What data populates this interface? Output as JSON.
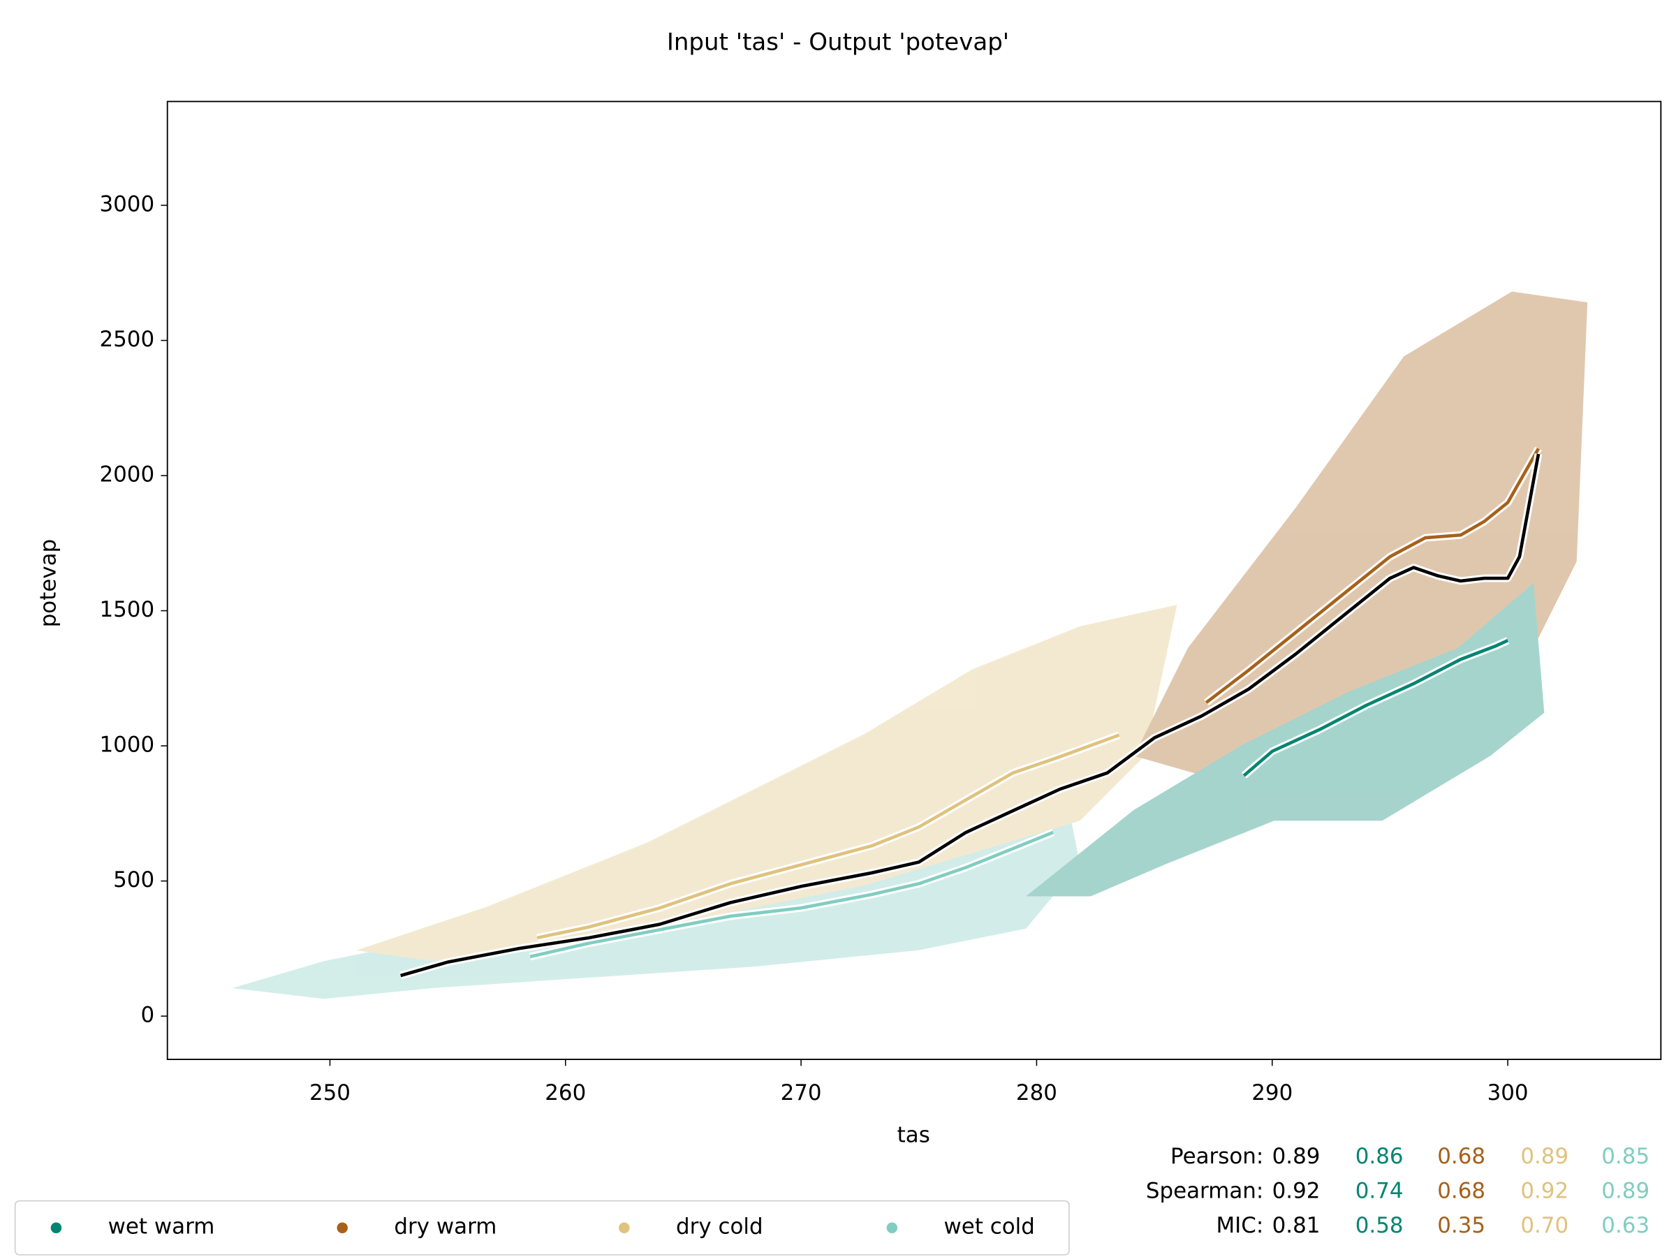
{
  "chart_data": {
    "type": "line",
    "title": "Input 'tas' - Output 'potevap'",
    "x_label": "tas",
    "y_label": "potevap",
    "xlim": [
      243.1,
      306.5
    ],
    "ylim": [
      -160,
      3384
    ],
    "xticks": [
      250,
      260,
      270,
      280,
      290,
      300
    ],
    "yticks": [
      0,
      500,
      1000,
      1500,
      2000,
      2500,
      3000
    ],
    "overall": {
      "color": "#000000",
      "x": [
        253,
        255,
        258,
        261,
        264,
        267,
        270,
        273,
        275,
        277,
        279,
        281,
        283,
        285,
        287,
        289,
        291,
        293,
        295,
        296,
        297,
        298,
        299,
        300,
        300.5,
        301.3
      ],
      "values": [
        150,
        200,
        250,
        290,
        340,
        420,
        480,
        530,
        570,
        680,
        760,
        840,
        900,
        1030,
        1110,
        1210,
        1340,
        1480,
        1620,
        1660,
        1630,
        1610,
        1620,
        1620,
        1700,
        2080
      ]
    },
    "series": [
      {
        "name": "wet warm",
        "color": "#018571",
        "x": [
          288.8,
          290,
          292,
          294,
          296,
          298,
          299.5,
          300
        ],
        "values": [
          890,
          980,
          1060,
          1150,
          1230,
          1320,
          1370,
          1390
        ]
      },
      {
        "name": "dry warm",
        "color": "#a6611a",
        "x": [
          287.2,
          289,
          291,
          293,
          295,
          296.5,
          298,
          299,
          300,
          301.3
        ],
        "values": [
          1160,
          1280,
          1420,
          1560,
          1700,
          1770,
          1780,
          1830,
          1900,
          2100
        ]
      },
      {
        "name": "dry cold",
        "color": "#dfc27d",
        "x": [
          258.8,
          261,
          264,
          267,
          270,
          273,
          275,
          277,
          279,
          281,
          283.5
        ],
        "values": [
          290,
          330,
          400,
          490,
          560,
          630,
          700,
          800,
          900,
          960,
          1040
        ]
      },
      {
        "name": "wet cold",
        "color": "#80cdc1",
        "x": [
          258.5,
          261,
          264,
          267,
          270,
          273,
          275,
          277,
          279,
          280.7
        ],
        "values": [
          220,
          270,
          320,
          370,
          400,
          450,
          490,
          550,
          620,
          680
        ]
      }
    ],
    "stats": {
      "labels": [
        "Pearson:",
        "Spearman:",
        "MIC:"
      ],
      "rows": [
        [
          "0.89",
          "0.86",
          "0.68",
          "0.89",
          "0.85"
        ],
        [
          "0.92",
          "0.74",
          "0.68",
          "0.92",
          "0.89"
        ],
        [
          "0.81",
          "0.58",
          "0.35",
          "0.70",
          "0.63"
        ]
      ]
    }
  }
}
